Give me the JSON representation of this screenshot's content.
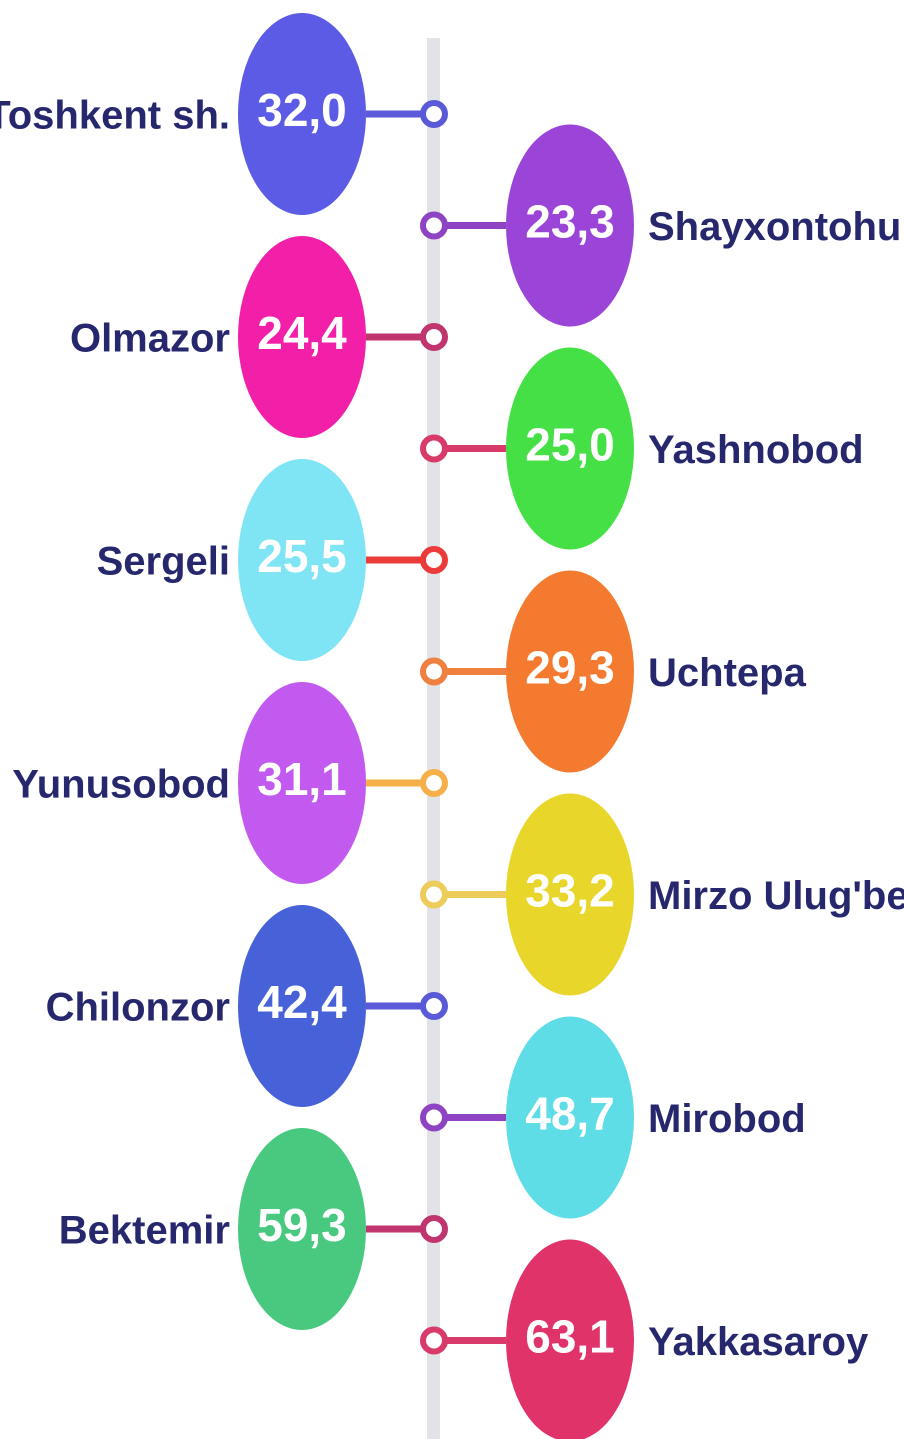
{
  "items": [
    {
      "name": "Toshkent sh.",
      "value": "32,0",
      "color": "#5b5be6",
      "line_color": "#5a5ad8"
    },
    {
      "name": "Shayxontohur",
      "value": "23,3",
      "color": "#9b45d8",
      "line_color": "#8e44c2"
    },
    {
      "name": "Olmazor",
      "value": "24,4",
      "color": "#f21fa8",
      "line_color": "#c0356e"
    },
    {
      "name": "Yashnobod",
      "value": "25,0",
      "color": "#44e045",
      "line_color": "#d83a6a"
    },
    {
      "name": "Sergeli",
      "value": "25,5",
      "color": "#7fe5f5",
      "line_color": "#ec3b3b"
    },
    {
      "name": "Uchtepa",
      "value": "29,3",
      "color": "#f47a30",
      "line_color": "#f08040"
    },
    {
      "name": "Yunusobod",
      "value": "31,1",
      "color": "#c25af0",
      "line_color": "#f5b04a"
    },
    {
      "name": "Mirzo Ulug'bek",
      "value": "33,2",
      "color": "#e8d62a",
      "line_color": "#edcc5a"
    },
    {
      "name": "Chilonzor",
      "value": "42,4",
      "color": "#4761d8",
      "line_color": "#5a5ad8"
    },
    {
      "name": "Mirobod",
      "value": "48,7",
      "color": "#5fdde6",
      "line_color": "#8e44c2"
    },
    {
      "name": "Bektemir",
      "value": "59,3",
      "color": "#48c97f",
      "line_color": "#c0356e"
    },
    {
      "name": "Yakkasaroy",
      "value": "63,1",
      "color": "#e0336a",
      "line_color": "#d83a6a"
    }
  ]
}
